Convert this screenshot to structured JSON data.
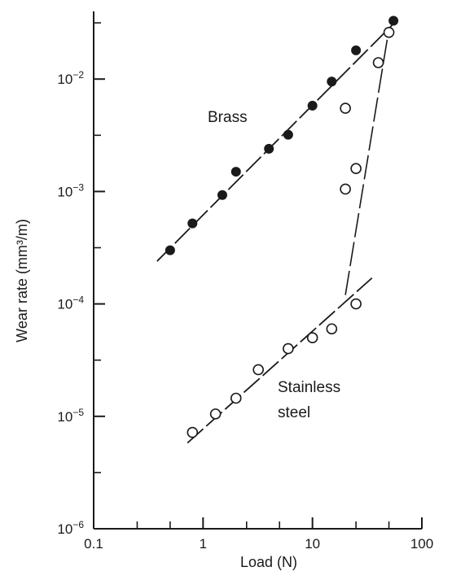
{
  "chart_data": {
    "type": "scatter",
    "title": "",
    "xlabel": "Load (N)",
    "ylabel": "Wear rate (mm³/m)",
    "xscale": "log",
    "yscale": "log",
    "xlim": [
      0.1,
      100
    ],
    "ylim": [
      1e-06,
      0.04
    ],
    "grid": false,
    "x_ticks": [
      0.1,
      1,
      10,
      100
    ],
    "x_tick_labels": [
      "0.1",
      "1",
      "10",
      "100"
    ],
    "y_ticks": [
      1e-06,
      1e-05,
      0.0001,
      0.001,
      0.01
    ],
    "y_tick_labels": [
      {
        "base": "10",
        "exp": "−6"
      },
      {
        "base": "10",
        "exp": "−5"
      },
      {
        "base": "10",
        "exp": "−4"
      },
      {
        "base": "10",
        "exp": "−3"
      },
      {
        "base": "10",
        "exp": "−2"
      }
    ],
    "series": [
      {
        "name": "Brass",
        "marker": "filled-circle",
        "color": "#1a1a1a",
        "points": [
          {
            "x": 0.5,
            "y": 0.0003
          },
          {
            "x": 0.8,
            "y": 0.00052
          },
          {
            "x": 1.5,
            "y": 0.00093
          },
          {
            "x": 2.0,
            "y": 0.0015
          },
          {
            "x": 4.0,
            "y": 0.0024
          },
          {
            "x": 6.0,
            "y": 0.0032
          },
          {
            "x": 10,
            "y": 0.0058
          },
          {
            "x": 15,
            "y": 0.0095
          },
          {
            "x": 25,
            "y": 0.018
          },
          {
            "x": 55,
            "y": 0.033
          }
        ],
        "trend": [
          {
            "x": 0.38,
            "y": 0.00024
          },
          {
            "x": 55,
            "y": 0.031
          }
        ]
      },
      {
        "name": "Stainless steel",
        "marker": "open-circle",
        "color": "#1a1a1a",
        "points": [
          {
            "x": 0.8,
            "y": 7.2e-06
          },
          {
            "x": 1.3,
            "y": 1.05e-05
          },
          {
            "x": 2.0,
            "y": 1.45e-05
          },
          {
            "x": 3.2,
            "y": 2.6e-05
          },
          {
            "x": 6.0,
            "y": 4e-05
          },
          {
            "x": 10,
            "y": 5e-05
          },
          {
            "x": 15,
            "y": 6e-05
          },
          {
            "x": 25,
            "y": 0.0001
          },
          {
            "x": 20,
            "y": 0.00105
          },
          {
            "x": 25,
            "y": 0.0016
          },
          {
            "x": 20,
            "y": 0.0055
          },
          {
            "x": 40,
            "y": 0.014
          },
          {
            "x": 50,
            "y": 0.026
          }
        ],
        "trend": [
          {
            "x": 0.72,
            "y": 5.8e-06
          },
          {
            "x": 35,
            "y": 0.00017
          }
        ],
        "transition": [
          {
            "x": 20,
            "y": 0.00012
          },
          {
            "x": 50,
            "y": 0.028
          }
        ]
      }
    ]
  }
}
